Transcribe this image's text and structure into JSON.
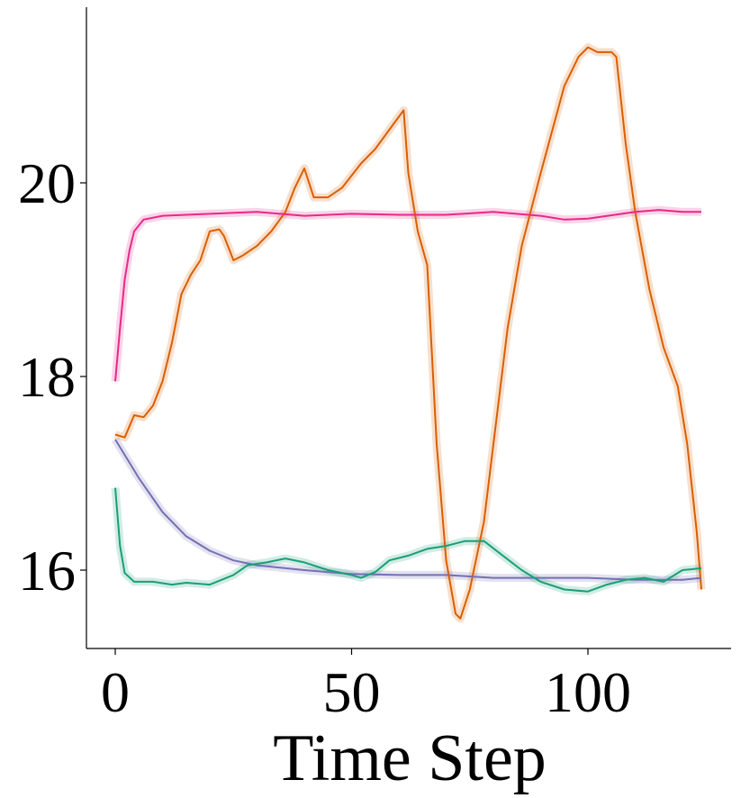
{
  "chart_data": {
    "type": "line",
    "title": "",
    "xlabel": "Time Step",
    "ylabel": "",
    "xlim": [
      -6,
      130
    ],
    "ylim": [
      15.2,
      21.8
    ],
    "xticks": [
      0,
      50,
      100
    ],
    "yticks": [
      16,
      18,
      20
    ],
    "xtick_labels": [
      "0",
      "50",
      "100"
    ],
    "ytick_labels": [
      "16",
      "18",
      "20"
    ],
    "grid": false,
    "legend": "none",
    "series": [
      {
        "color": "#d95f02",
        "x": [
          0,
          2,
          4,
          6,
          8,
          10,
          12,
          14,
          16,
          18,
          20,
          22,
          23,
          25,
          27,
          30,
          33,
          36,
          38,
          40,
          42,
          45,
          48,
          52,
          55,
          58,
          61,
          62,
          64,
          66,
          68,
          70,
          72,
          73,
          75,
          78,
          80,
          83,
          86,
          90,
          95,
          98,
          100,
          102,
          105,
          106,
          108,
          110,
          113,
          116,
          119,
          121,
          123,
          124
        ],
        "y": [
          17.4,
          17.37,
          17.6,
          17.58,
          17.7,
          17.95,
          18.35,
          18.85,
          19.05,
          19.2,
          19.5,
          19.52,
          19.45,
          19.2,
          19.25,
          19.35,
          19.5,
          19.7,
          19.95,
          20.15,
          19.85,
          19.85,
          19.95,
          20.2,
          20.35,
          20.55,
          20.75,
          20.1,
          19.5,
          19.15,
          17.3,
          16.1,
          15.55,
          15.5,
          15.8,
          16.5,
          17.3,
          18.5,
          19.35,
          20.1,
          21.0,
          21.3,
          21.4,
          21.35,
          21.35,
          21.3,
          20.4,
          19.7,
          18.9,
          18.3,
          17.9,
          17.3,
          16.4,
          15.8
        ]
      },
      {
        "color": "#e7298a",
        "x": [
          0,
          1,
          2,
          3,
          4,
          6,
          10,
          20,
          30,
          40,
          50,
          60,
          70,
          80,
          90,
          95,
          100,
          110,
          115,
          120,
          124
        ],
        "y": [
          17.95,
          18.5,
          19.0,
          19.3,
          19.5,
          19.62,
          19.66,
          19.68,
          19.7,
          19.66,
          19.68,
          19.67,
          19.67,
          19.7,
          19.66,
          19.62,
          19.63,
          19.7,
          19.72,
          19.7,
          19.7
        ]
      },
      {
        "color": "#7570b3",
        "x": [
          0,
          5,
          10,
          15,
          20,
          25,
          30,
          40,
          50,
          60,
          70,
          80,
          90,
          100,
          110,
          120,
          124
        ],
        "y": [
          17.35,
          16.95,
          16.6,
          16.35,
          16.2,
          16.1,
          16.05,
          16.0,
          15.96,
          15.95,
          15.95,
          15.92,
          15.92,
          15.92,
          15.9,
          15.9,
          15.92
        ]
      },
      {
        "color": "#1b9e77",
        "x": [
          0,
          1,
          2,
          4,
          8,
          12,
          15,
          20,
          25,
          28,
          32,
          36,
          40,
          45,
          50,
          52,
          55,
          58,
          62,
          66,
          70,
          74,
          78,
          82,
          86,
          90,
          95,
          100,
          104,
          108,
          112,
          116,
          120,
          124
        ],
        "y": [
          16.85,
          16.25,
          15.97,
          15.88,
          15.88,
          15.85,
          15.87,
          15.85,
          15.95,
          16.05,
          16.08,
          16.12,
          16.08,
          16.0,
          15.95,
          15.92,
          15.98,
          16.1,
          16.15,
          16.22,
          16.25,
          16.3,
          16.3,
          16.15,
          16.0,
          15.88,
          15.8,
          15.78,
          15.85,
          15.9,
          15.92,
          15.88,
          16.0,
          16.02
        ]
      }
    ]
  }
}
